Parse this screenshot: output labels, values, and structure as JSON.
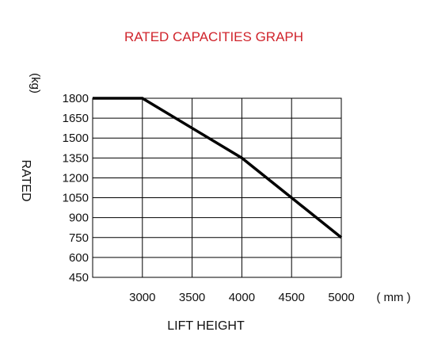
{
  "colors": {
    "title": "#d0242c",
    "line": "#000000",
    "grid": "#000000"
  },
  "chart_data": {
    "type": "line",
    "title": "RATED CAPACITIES GRAPH",
    "xlabel": "LIFT HEIGHT",
    "xunit": "( mm )",
    "ylabel": "RATED",
    "yunit": "(kg)",
    "xlim": [
      2500,
      5000
    ],
    "ylim": [
      450,
      1800
    ],
    "xticks": [
      3000,
      3500,
      4000,
      4500,
      5000
    ],
    "yticks": [
      1800,
      1650,
      1500,
      1350,
      1200,
      1050,
      900,
      750,
      600,
      450
    ],
    "grid": true,
    "series": [
      {
        "x": [
          2500,
          3000,
          4000,
          5000
        ],
        "y": [
          1800,
          1800,
          1350,
          750
        ]
      }
    ]
  }
}
